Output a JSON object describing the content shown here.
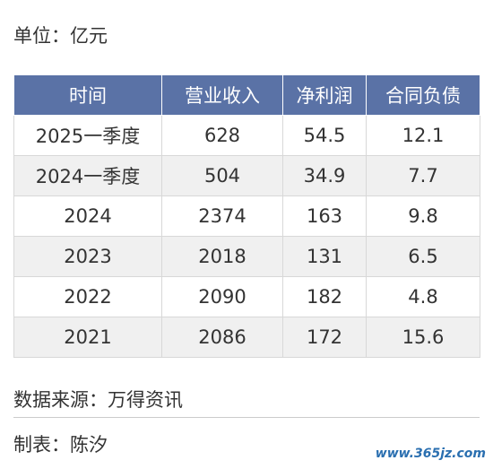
{
  "header": {
    "unit": "单位：亿元"
  },
  "table": {
    "columns": [
      "时间",
      "营业收入",
      "净利润",
      "合同负债"
    ],
    "rows": [
      [
        "2025一季度",
        "628",
        "54.5",
        "12.1"
      ],
      [
        "2024一季度",
        "504",
        "34.9",
        "7.7"
      ],
      [
        "2024",
        "2374",
        "163",
        "9.8"
      ],
      [
        "2023",
        "2018",
        "131",
        "6.5"
      ],
      [
        "2022",
        "2090",
        "182",
        "4.8"
      ],
      [
        "2021",
        "2086",
        "172",
        "15.6"
      ]
    ]
  },
  "footer": {
    "source": "数据来源：万得资讯",
    "author": "制表：陈汐",
    "watermark": "www.365jz.com"
  }
}
